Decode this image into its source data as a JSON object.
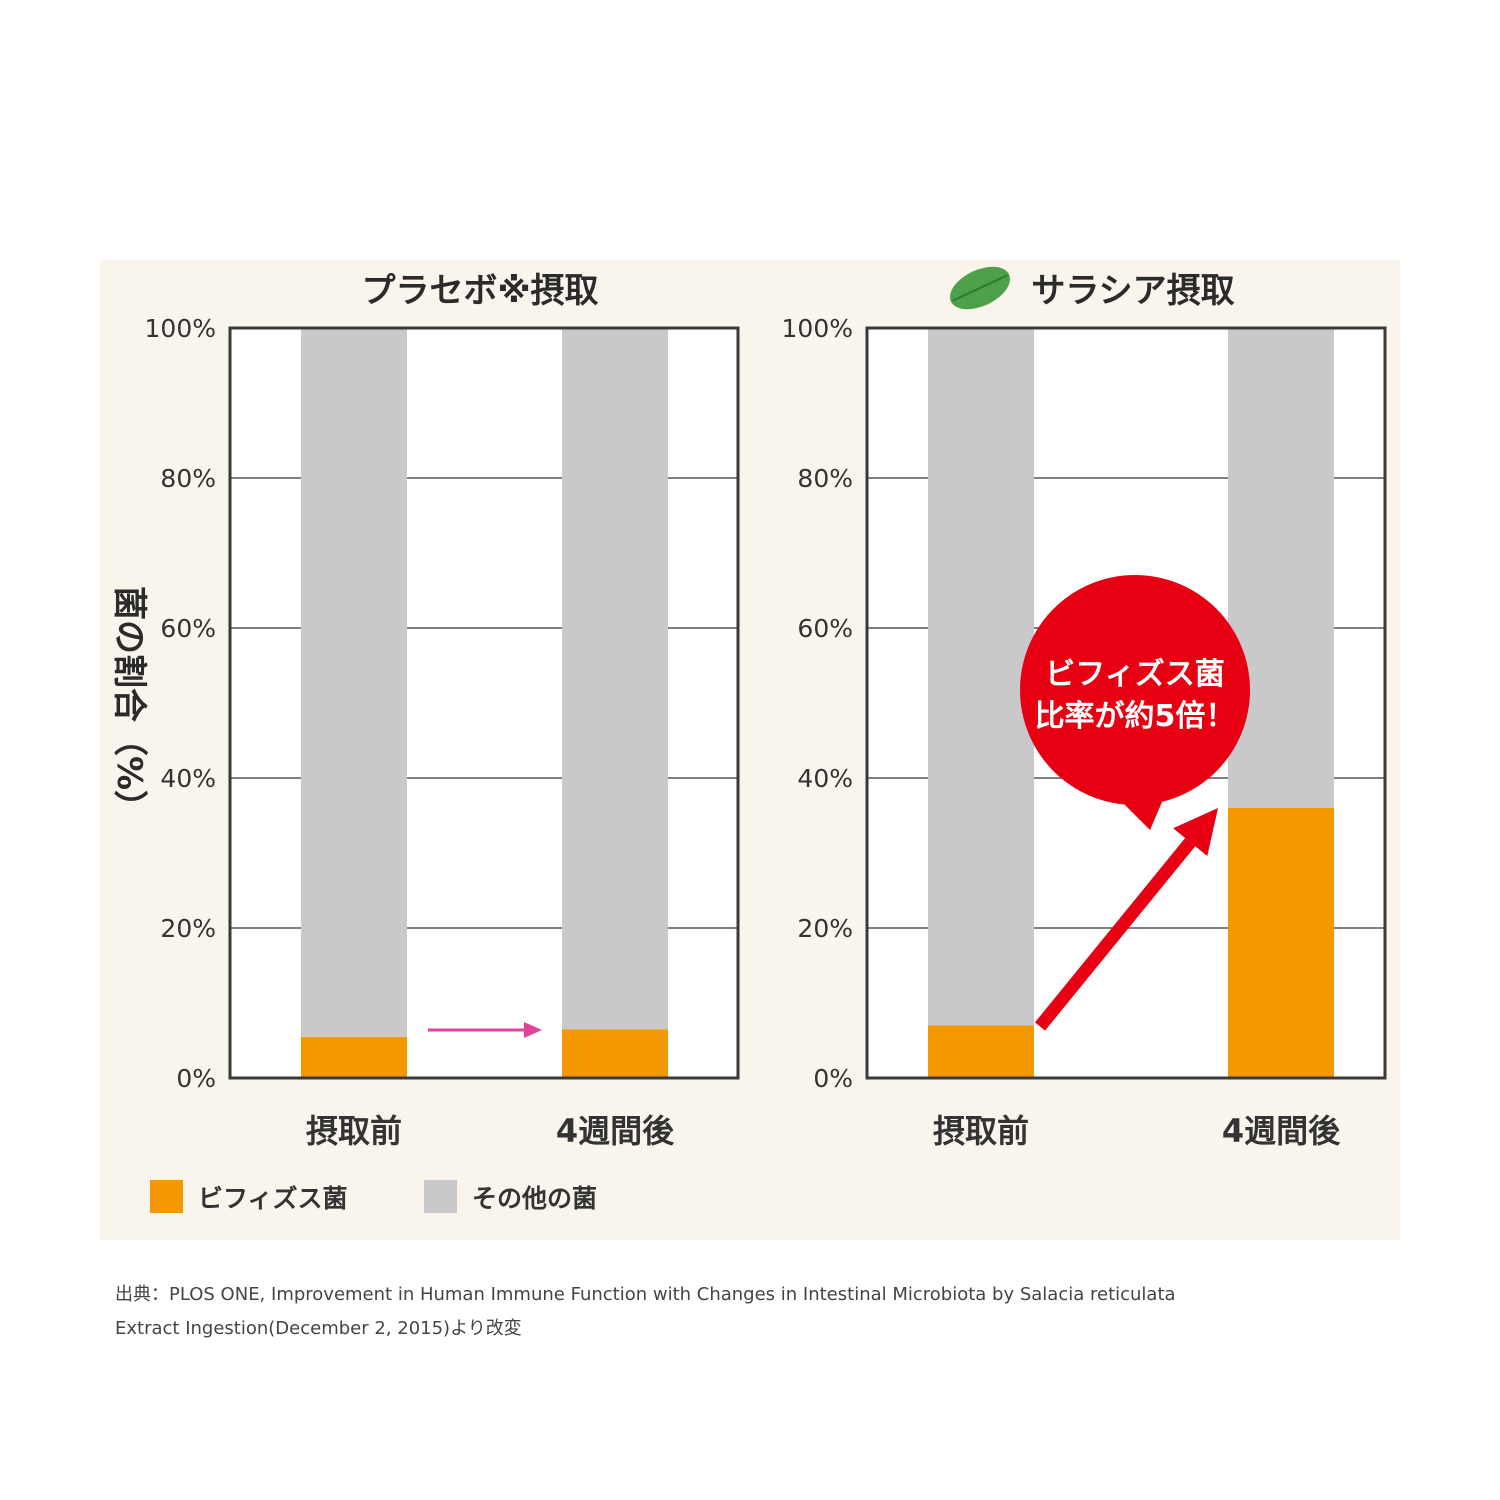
{
  "colors": {
    "bifidobacteria": "#f39800",
    "other_bacteria": "#c9c9cb",
    "placebo_arrow": "#e0429c",
    "callout": "#e60012",
    "leaf": "#4ea14a"
  },
  "chart_data": [
    {
      "type": "bar",
      "stacked": true,
      "title": "プラセボ※摂取",
      "ylabel": "菌の割合（%）",
      "ylim": [
        0,
        100
      ],
      "yticks": [
        "0%",
        "20%",
        "40%",
        "60%",
        "80%",
        "100%"
      ],
      "grid": true,
      "categories": [
        "摂取前",
        "4週間後"
      ],
      "series": [
        {
          "name": "ビフィズス菌",
          "values": [
            5.5,
            6.5
          ]
        },
        {
          "name": "その他の菌",
          "values": [
            94.5,
            93.5
          ]
        }
      ]
    },
    {
      "type": "bar",
      "stacked": true,
      "title": "サラシア摂取",
      "ylim": [
        0,
        100
      ],
      "yticks": [
        "0%",
        "20%",
        "40%",
        "60%",
        "80%",
        "100%"
      ],
      "grid": true,
      "categories": [
        "摂取前",
        "4週間後"
      ],
      "series": [
        {
          "name": "ビフィズス菌",
          "values": [
            7,
            36
          ]
        },
        {
          "name": "その他の菌",
          "values": [
            93,
            64
          ]
        }
      ],
      "annotation": [
        "ビフィズス菌",
        "比率が約5倍！"
      ]
    }
  ],
  "legend": [
    {
      "label": "ビフィズス菌",
      "color_key": "bifidobacteria"
    },
    {
      "label": "その他の菌",
      "color_key": "other_bacteria"
    }
  ],
  "legend_placement": "bottom-left",
  "source": [
    "出典：PLOS ONE, Improvement in Human Immune Function with Changes in Intestinal Microbiota by Salacia reticulata",
    "Extract Ingestion(December 2, 2015)より改変"
  ]
}
